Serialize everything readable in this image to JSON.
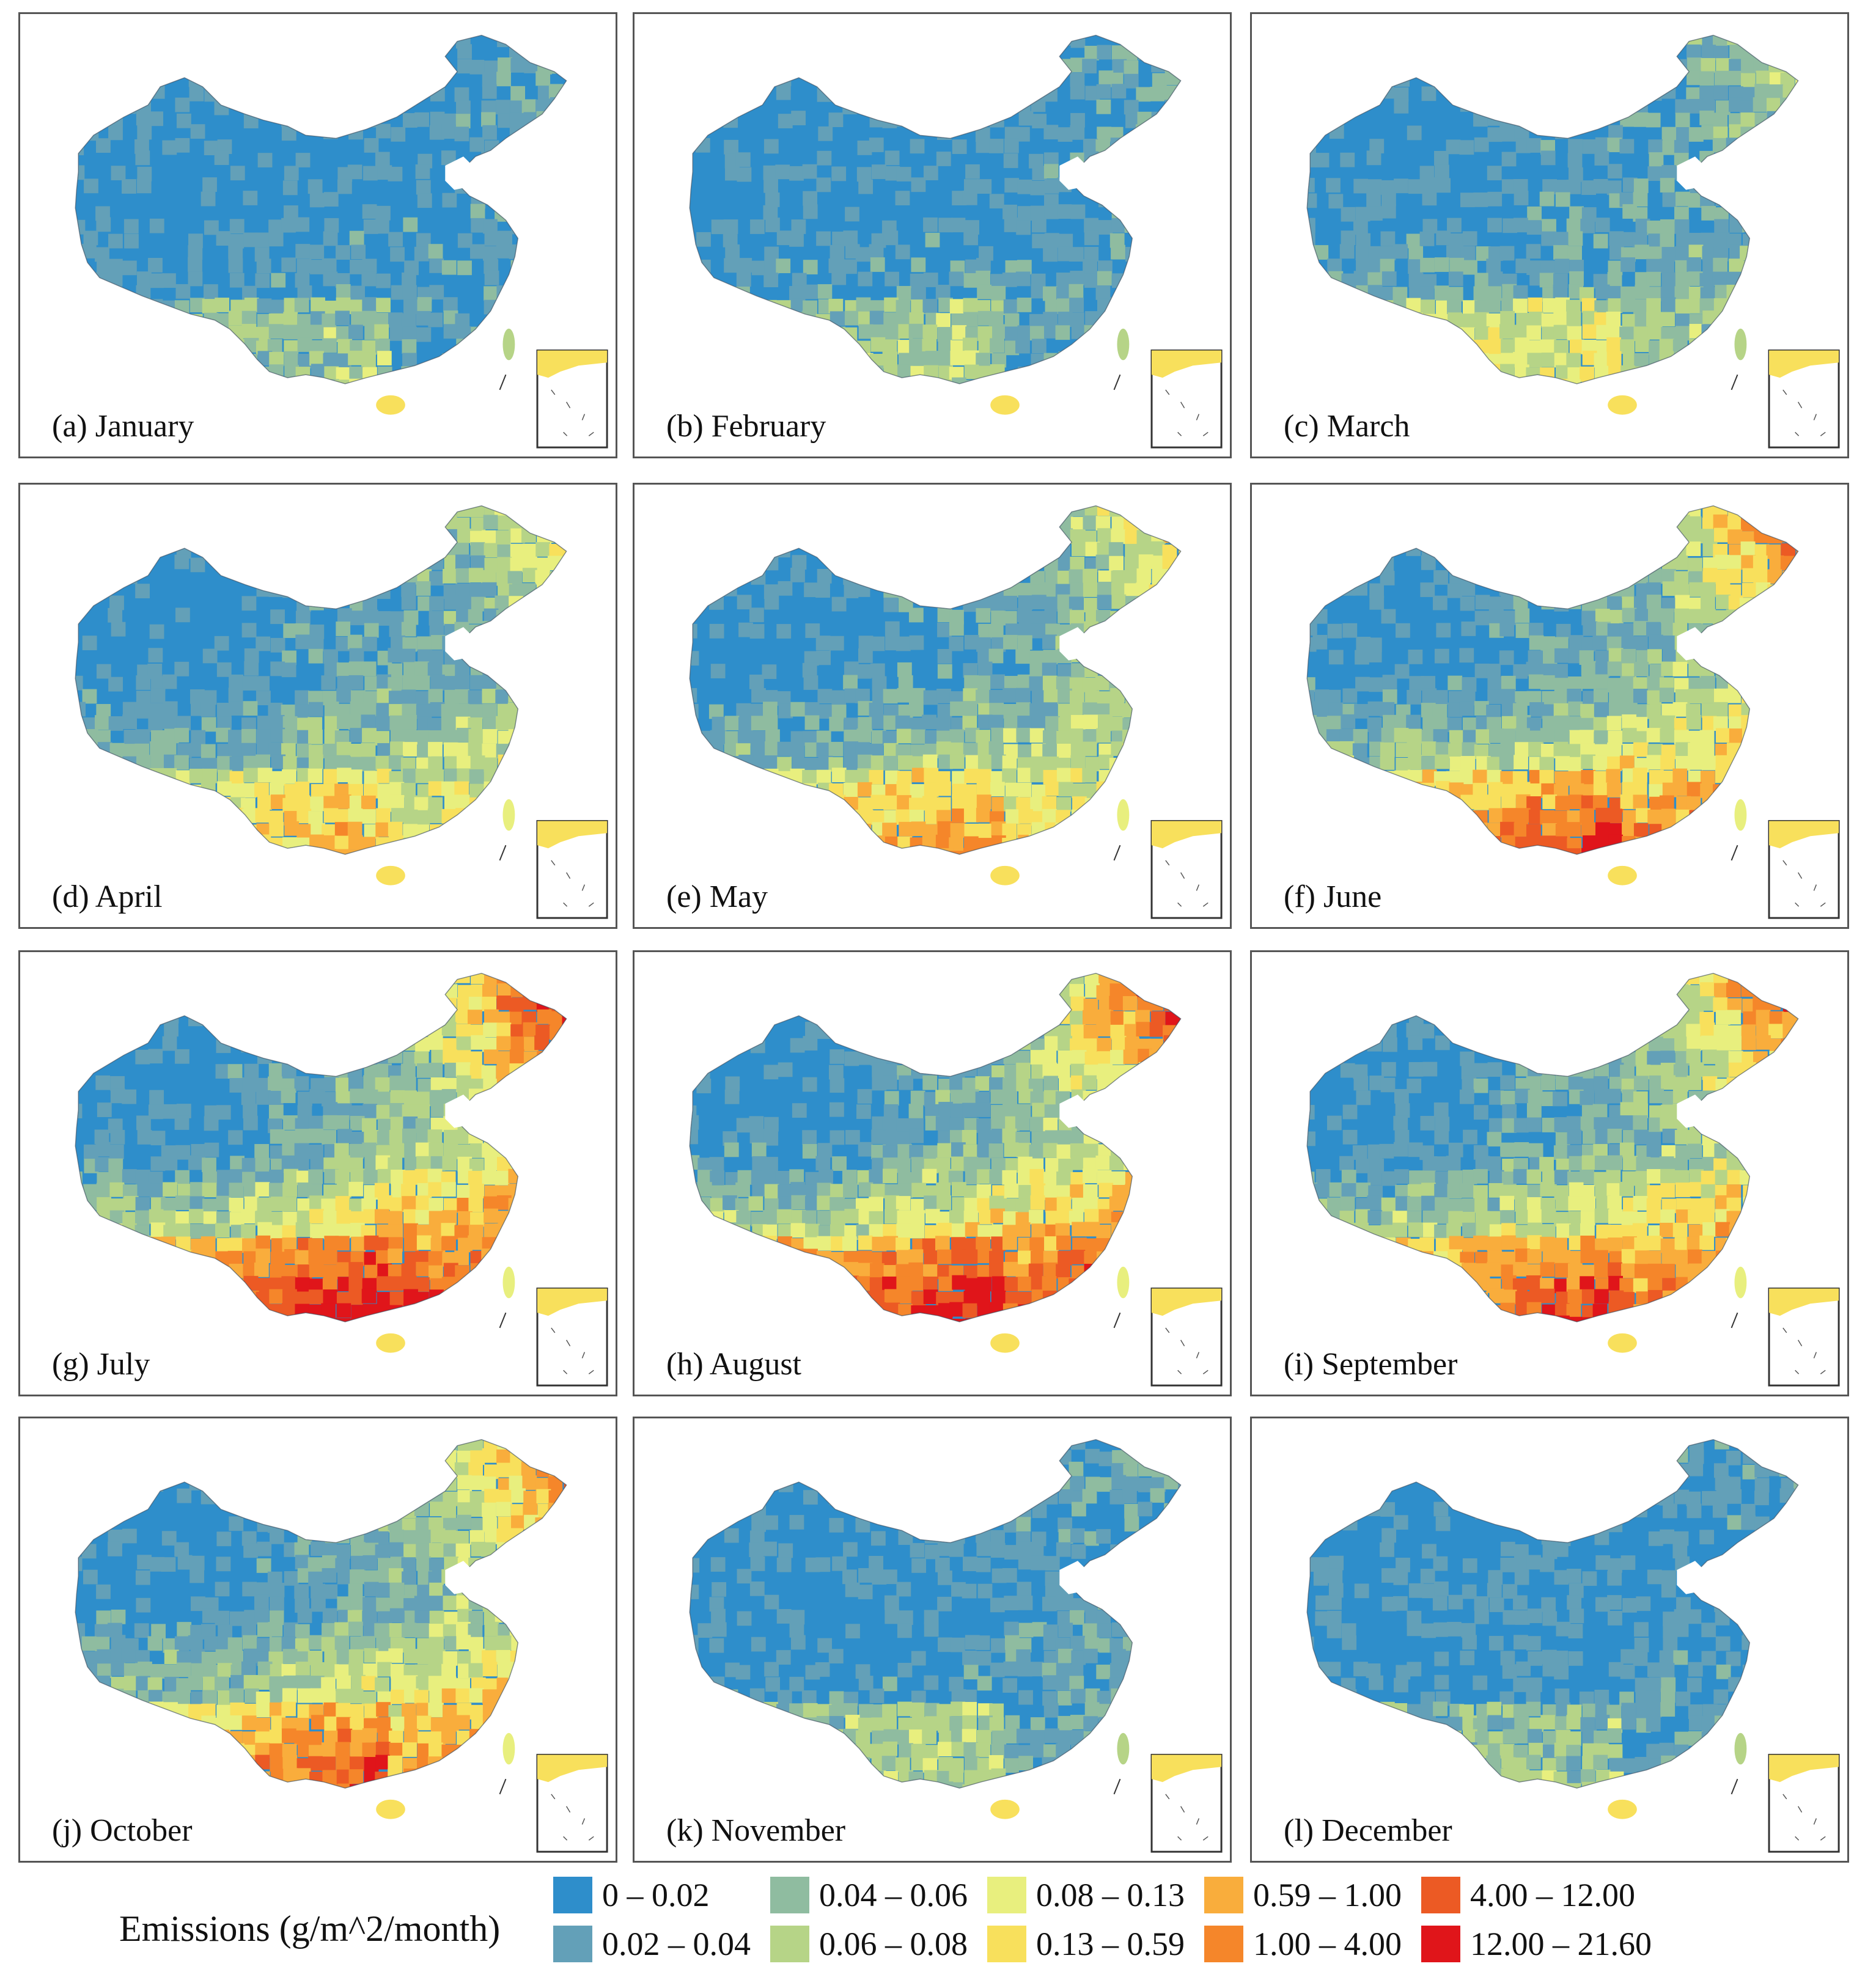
{
  "figure": {
    "panels": [
      {
        "label": "(a) January",
        "level": 0.1
      },
      {
        "label": "(b) February",
        "level": 0.14
      },
      {
        "label": "(c) March",
        "level": 0.3
      },
      {
        "label": "(d) April",
        "level": 0.48
      },
      {
        "label": "(e) May",
        "level": 0.52
      },
      {
        "label": "(f) June",
        "level": 0.75
      },
      {
        "label": "(g) July",
        "level": 0.95
      },
      {
        "label": "(h) August",
        "level": 0.9
      },
      {
        "label": "(i) September",
        "level": 0.8
      },
      {
        "label": "(j) October",
        "level": 0.72
      },
      {
        "label": "(k) November",
        "level": 0.14
      },
      {
        "label": "(l) December",
        "level": 0.08
      }
    ],
    "legend": {
      "title": "Emissions (g/m^2/month)",
      "classes": [
        {
          "range": "0 – 0.02",
          "color": "#2e8ecb"
        },
        {
          "range": "0.02 – 0.04",
          "color": "#63a0b8"
        },
        {
          "range": "0.04 – 0.06",
          "color": "#8fbca0"
        },
        {
          "range": "0.06 – 0.08",
          "color": "#b6d487"
        },
        {
          "range": "0.08 – 0.13",
          "color": "#e8ef7e"
        },
        {
          "range": "0.13 – 0.59",
          "color": "#f8e05c"
        },
        {
          "range": "0.59 – 1.00",
          "color": "#f9ad3c"
        },
        {
          "range": "1.00 – 4.00",
          "color": "#f5862a"
        },
        {
          "range": "4.00 – 12.00",
          "color": "#ec5a24"
        },
        {
          "range": "12.00 – 21.60",
          "color": "#e0151a"
        }
      ]
    }
  }
}
